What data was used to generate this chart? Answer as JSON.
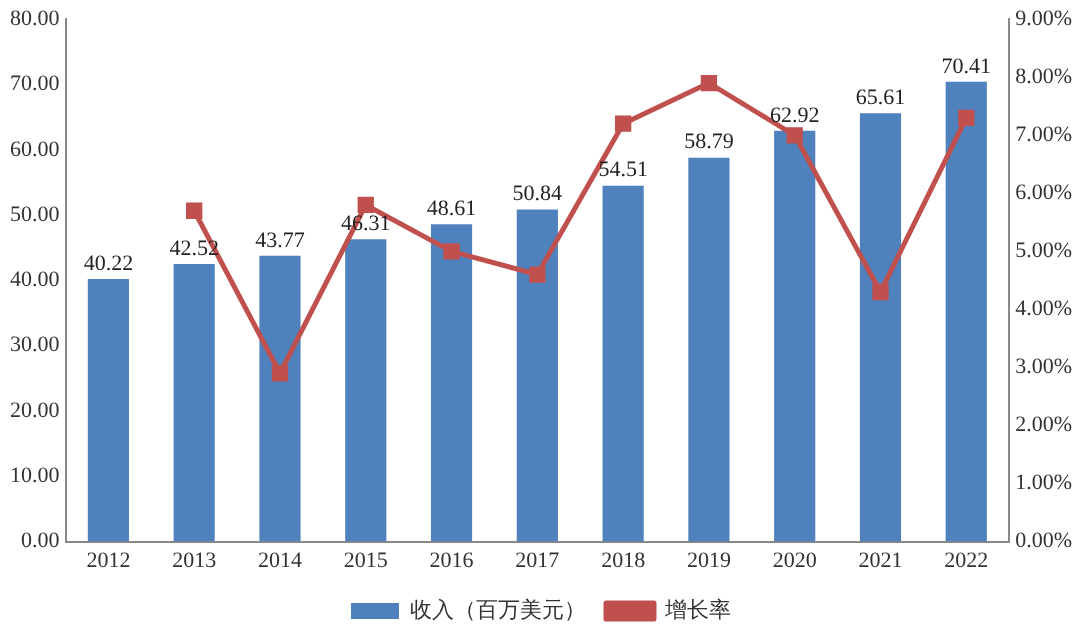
{
  "chart_data": {
    "type": "bar",
    "categories": [
      "2012",
      "2013",
      "2014",
      "2015",
      "2016",
      "2017",
      "2018",
      "2019",
      "2020",
      "2021",
      "2022"
    ],
    "series": [
      {
        "name": "收入（百万美元）",
        "color": "#4f81bd",
        "values": [
          40.22,
          42.52,
          43.77,
          46.31,
          48.61,
          50.84,
          54.51,
          58.79,
          62.92,
          65.61,
          70.41
        ],
        "value_labels": [
          "40.22",
          "42.52",
          "43.77",
          "46.31",
          "48.61",
          "50.84",
          "54.51",
          "58.79",
          "62.92",
          "65.61",
          "70.41"
        ]
      },
      {
        "name": "增长率",
        "type": "line",
        "axis": "y2",
        "color": "#c0504d",
        "marker": "square",
        "values": [
          null,
          5.7,
          2.9,
          5.8,
          5.0,
          4.6,
          7.2,
          7.9,
          7.0,
          4.3,
          7.3
        ]
      }
    ],
    "ylim": [
      0,
      80
    ],
    "yticks": [
      {
        "value": 0,
        "label": "0.00"
      },
      {
        "value": 10,
        "label": "10.00"
      },
      {
        "value": 20,
        "label": "20.00"
      },
      {
        "value": 30,
        "label": "30.00"
      },
      {
        "value": 40,
        "label": "40.00"
      },
      {
        "value": 50,
        "label": "50.00"
      },
      {
        "value": 60,
        "label": "60.00"
      },
      {
        "value": 70,
        "label": "70.00"
      },
      {
        "value": 80,
        "label": "80.00"
      }
    ],
    "y2lim": [
      0,
      9
    ],
    "y2ticks": [
      {
        "value": 0,
        "label": "0.00%"
      },
      {
        "value": 1,
        "label": "1.00%"
      },
      {
        "value": 2,
        "label": "2.00%"
      },
      {
        "value": 3,
        "label": "3.00%"
      },
      {
        "value": 4,
        "label": "4.00%"
      },
      {
        "value": 5,
        "label": "5.00%"
      },
      {
        "value": 6,
        "label": "6.00%"
      },
      {
        "value": 7,
        "label": "7.00%"
      },
      {
        "value": 8,
        "label": "8.00%"
      },
      {
        "value": 9,
        "label": "9.00%"
      }
    ],
    "grid": false,
    "legend": "bottom"
  }
}
